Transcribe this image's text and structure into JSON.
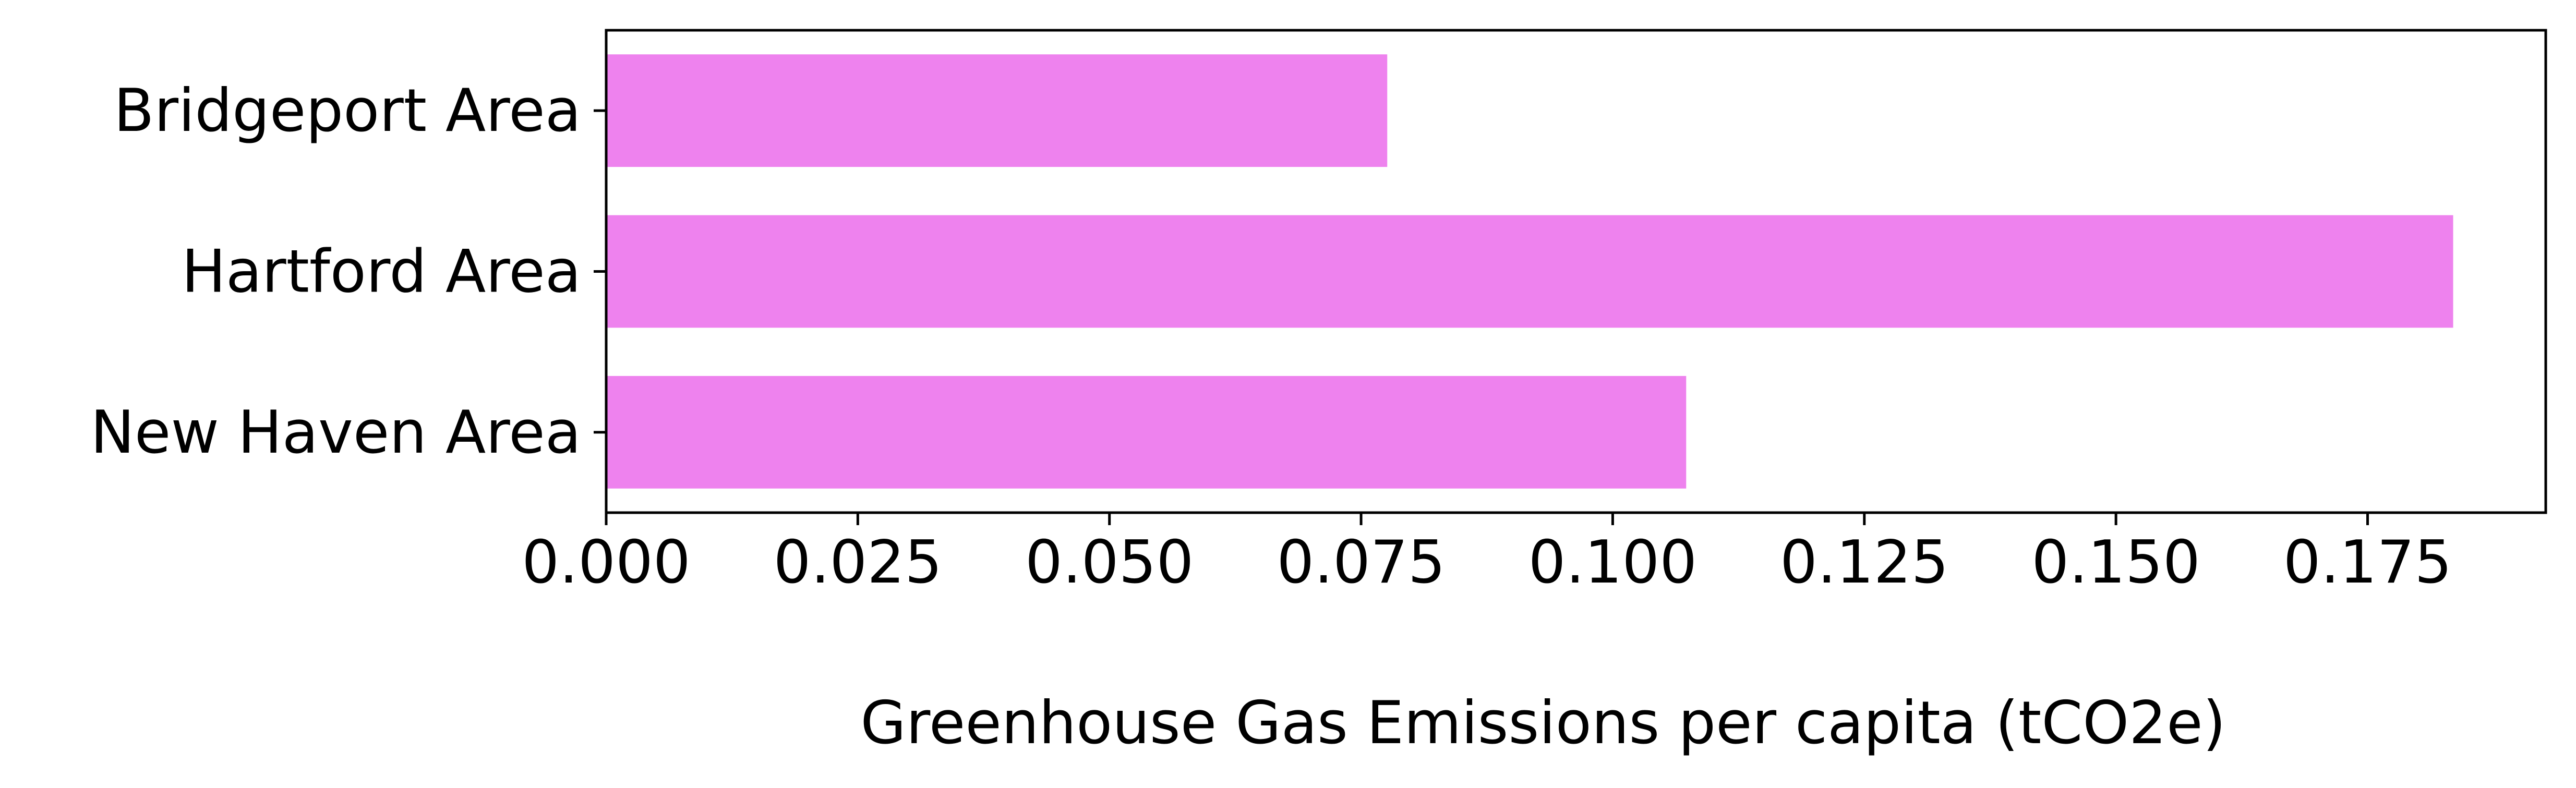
{
  "chart_data": {
    "type": "bar",
    "orientation": "horizontal",
    "categories": [
      "Bridgeport Area",
      "Hartford Area",
      "New Haven Area"
    ],
    "values": [
      0.0776,
      0.1835,
      0.1073
    ],
    "xlabel": "Greenhouse Gas Emissions per capita (tCO2e)",
    "ylabel": "",
    "xlim": [
      0,
      0.1927
    ],
    "xticks": [
      "0.000",
      "0.025",
      "0.050",
      "0.075",
      "0.100",
      "0.125",
      "0.150",
      "0.175"
    ],
    "grid": false,
    "bar_color": "#ee82ee"
  }
}
